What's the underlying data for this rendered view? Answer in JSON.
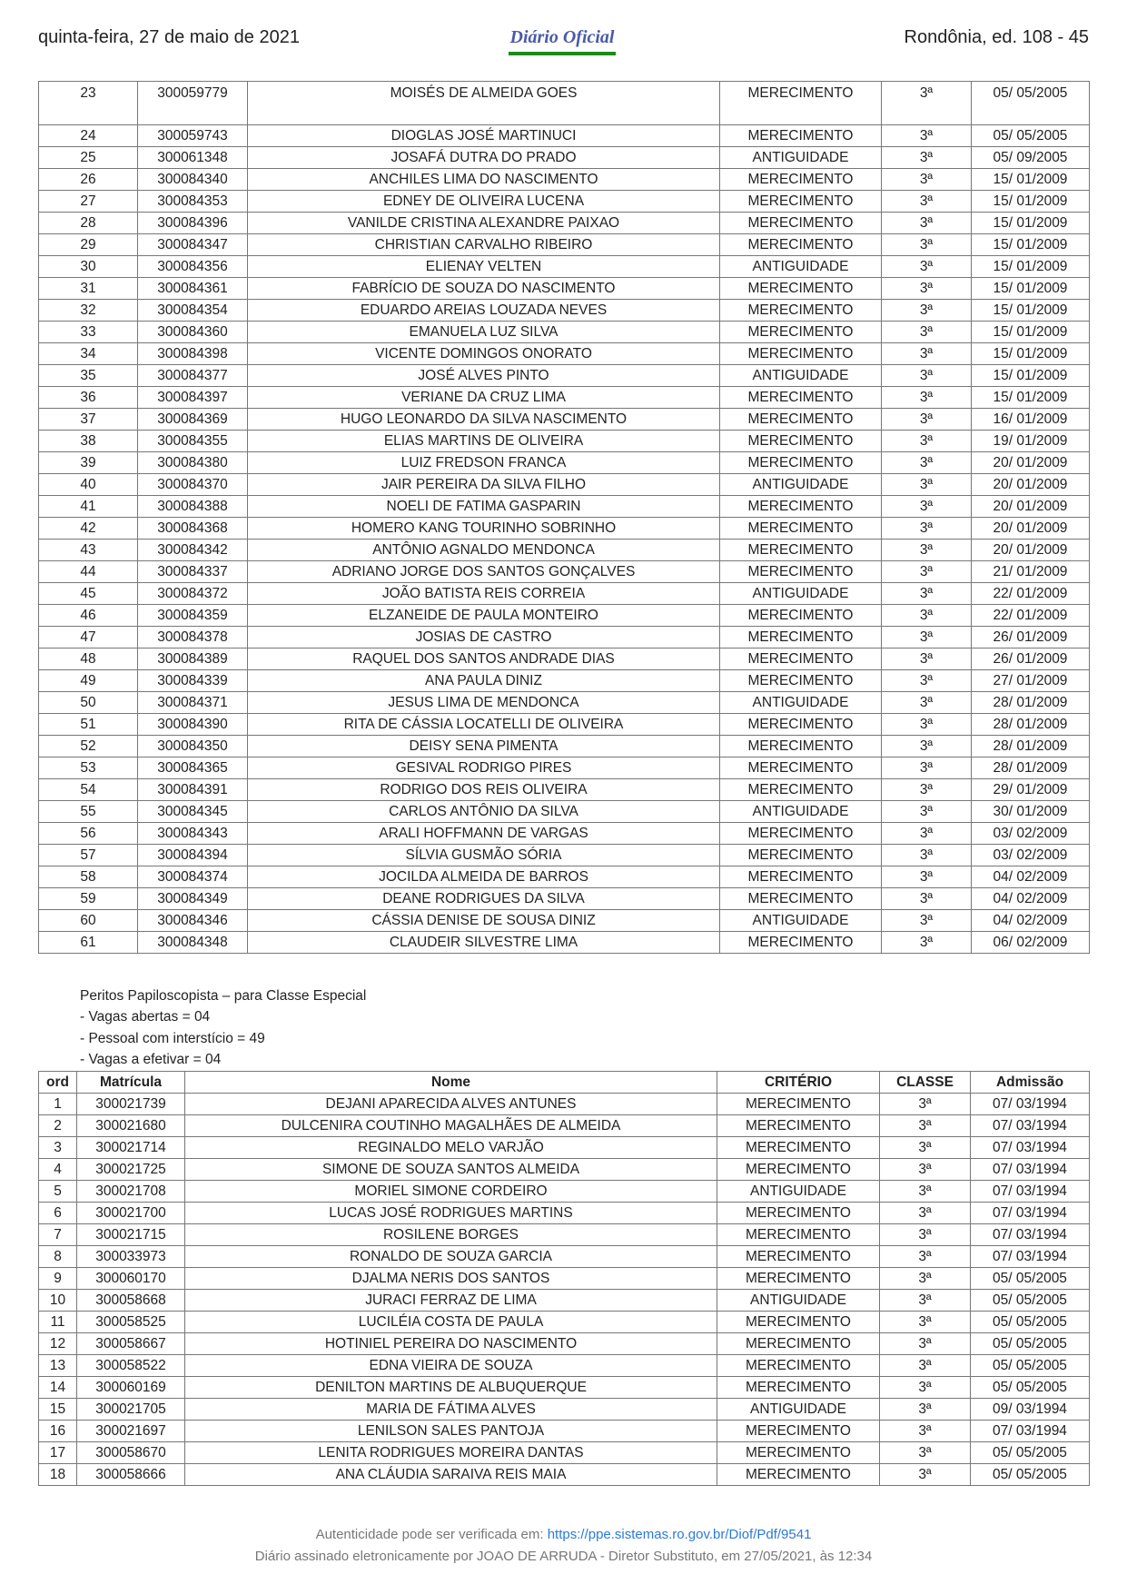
{
  "header": {
    "date": "quinta-feira, 27 de maio de 2021",
    "logo": "Diário Oficial",
    "edition": "Rondônia, ed. 108 - 45"
  },
  "table1": {
    "rows": [
      [
        "23",
        "300059779",
        "MOISÉS DE ALMEIDA GOES",
        "MERECIMENTO",
        "3ª",
        "05/ 05/2005"
      ],
      [
        "24",
        "300059743",
        "DIOGLAS JOSÉ MARTINUCI",
        "MERECIMENTO",
        "3ª",
        "05/ 05/2005"
      ],
      [
        "25",
        "300061348",
        "JOSAFÁ DUTRA DO PRADO",
        "ANTIGUIDADE",
        "3ª",
        "05/ 09/2005"
      ],
      [
        "26",
        "300084340",
        "ANCHILES LIMA DO NASCIMENTO",
        "MERECIMENTO",
        "3ª",
        "15/ 01/2009"
      ],
      [
        "27",
        "300084353",
        "EDNEY DE OLIVEIRA LUCENA",
        "MERECIMENTO",
        "3ª",
        "15/ 01/2009"
      ],
      [
        "28",
        "300084396",
        "VANILDE CRISTINA ALEXANDRE PAIXAO",
        "MERECIMENTO",
        "3ª",
        "15/ 01/2009"
      ],
      [
        "29",
        "300084347",
        "CHRISTIAN CARVALHO RIBEIRO",
        "MERECIMENTO",
        "3ª",
        "15/ 01/2009"
      ],
      [
        "30",
        "300084356",
        "ELIENAY VELTEN",
        "ANTIGUIDADE",
        "3ª",
        "15/ 01/2009"
      ],
      [
        "31",
        "300084361",
        "FABRÍCIO DE SOUZA DO NASCIMENTO",
        "MERECIMENTO",
        "3ª",
        "15/ 01/2009"
      ],
      [
        "32",
        "300084354",
        "EDUARDO AREIAS LOUZADA NEVES",
        "MERECIMENTO",
        "3ª",
        "15/ 01/2009"
      ],
      [
        "33",
        "300084360",
        "EMANUELA LUZ SILVA",
        "MERECIMENTO",
        "3ª",
        "15/ 01/2009"
      ],
      [
        "34",
        "300084398",
        "VICENTE DOMINGOS ONORATO",
        "MERECIMENTO",
        "3ª",
        "15/ 01/2009"
      ],
      [
        "35",
        "300084377",
        "JOSÉ ALVES PINTO",
        "ANTIGUIDADE",
        "3ª",
        "15/ 01/2009"
      ],
      [
        "36",
        "300084397",
        "VERIANE DA CRUZ LIMA",
        "MERECIMENTO",
        "3ª",
        "15/ 01/2009"
      ],
      [
        "37",
        "300084369",
        "HUGO LEONARDO DA SILVA NASCIMENTO",
        "MERECIMENTO",
        "3ª",
        "16/ 01/2009"
      ],
      [
        "38",
        "300084355",
        "ELIAS MARTINS DE OLIVEIRA",
        "MERECIMENTO",
        "3ª",
        "19/ 01/2009"
      ],
      [
        "39",
        "300084380",
        "LUIZ FREDSON FRANCA",
        "MERECIMENTO",
        "3ª",
        "20/ 01/2009"
      ],
      [
        "40",
        "300084370",
        "JAIR PEREIRA DA SILVA FILHO",
        "ANTIGUIDADE",
        "3ª",
        "20/ 01/2009"
      ],
      [
        "41",
        "300084388",
        "NOELI DE FATIMA GASPARIN",
        "MERECIMENTO",
        "3ª",
        "20/ 01/2009"
      ],
      [
        "42",
        "300084368",
        "HOMERO KANG TOURINHO SOBRINHO",
        "MERECIMENTO",
        "3ª",
        "20/ 01/2009"
      ],
      [
        "43",
        "300084342",
        "ANTÔNIO AGNALDO MENDONCA",
        "MERECIMENTO",
        "3ª",
        "20/ 01/2009"
      ],
      [
        "44",
        "300084337",
        "ADRIANO JORGE DOS SANTOS GONÇALVES",
        "MERECIMENTO",
        "3ª",
        "21/ 01/2009"
      ],
      [
        "45",
        "300084372",
        "JOÃO BATISTA REIS CORREIA",
        "ANTIGUIDADE",
        "3ª",
        "22/ 01/2009"
      ],
      [
        "46",
        "300084359",
        "ELZANEIDE DE PAULA MONTEIRO",
        "MERECIMENTO",
        "3ª",
        "22/ 01/2009"
      ],
      [
        "47",
        "300084378",
        "JOSIAS DE CASTRO",
        "MERECIMENTO",
        "3ª",
        "26/ 01/2009"
      ],
      [
        "48",
        "300084389",
        "RAQUEL DOS SANTOS ANDRADE DIAS",
        "MERECIMENTO",
        "3ª",
        "26/ 01/2009"
      ],
      [
        "49",
        "300084339",
        "ANA PAULA DINIZ",
        "MERECIMENTO",
        "3ª",
        "27/ 01/2009"
      ],
      [
        "50",
        "300084371",
        "JESUS LIMA DE MENDONCA",
        "ANTIGUIDADE",
        "3ª",
        "28/ 01/2009"
      ],
      [
        "51",
        "300084390",
        "RITA DE CÁSSIA LOCATELLI DE OLIVEIRA",
        "MERECIMENTO",
        "3ª",
        "28/ 01/2009"
      ],
      [
        "52",
        "300084350",
        "DEISY SENA PIMENTA",
        "MERECIMENTO",
        "3ª",
        "28/ 01/2009"
      ],
      [
        "53",
        "300084365",
        "GESIVAL RODRIGO PIRES",
        "MERECIMENTO",
        "3ª",
        "28/ 01/2009"
      ],
      [
        "54",
        "300084391",
        "RODRIGO DOS REIS OLIVEIRA",
        "MERECIMENTO",
        "3ª",
        "29/ 01/2009"
      ],
      [
        "55",
        "300084345",
        "CARLOS ANTÔNIO DA SILVA",
        "ANTIGUIDADE",
        "3ª",
        "30/ 01/2009"
      ],
      [
        "56",
        "300084343",
        "ARALI HOFFMANN DE VARGAS",
        "MERECIMENTO",
        "3ª",
        "03/ 02/2009"
      ],
      [
        "57",
        "300084394",
        "SÍLVIA GUSMÃO SÓRIA",
        "MERECIMENTO",
        "3ª",
        "03/ 02/2009"
      ],
      [
        "58",
        "300084374",
        "JOCILDA ALMEIDA DE BARROS",
        "MERECIMENTO",
        "3ª",
        "04/ 02/2009"
      ],
      [
        "59",
        "300084349",
        "DEANE RODRIGUES DA SILVA",
        "MERECIMENTO",
        "3ª",
        "04/ 02/2009"
      ],
      [
        "60",
        "300084346",
        "CÁSSIA DENISE DE SOUSA DINIZ",
        "ANTIGUIDADE",
        "3ª",
        "04/ 02/2009"
      ],
      [
        "61",
        "300084348",
        "CLAUDEIR SILVESTRE LIMA",
        "MERECIMENTO",
        "3ª",
        "06/ 02/2009"
      ]
    ]
  },
  "info": {
    "title": "Peritos Papiloscopista – para Classe Especial",
    "line1": "- Vagas abertas = 04",
    "line2": "- Pessoal com interstício = 49",
    "line3": "- Vagas a efetivar = 04"
  },
  "table2": {
    "headers": [
      "ord",
      "Matrícula",
      "Nome",
      "CRITÉRIO",
      "CLASSE",
      "Admissão"
    ],
    "rows": [
      [
        "1",
        "300021739",
        "DEJANI APARECIDA ALVES ANTUNES",
        "MERECIMENTO",
        "3ª",
        "07/ 03/1994"
      ],
      [
        "2",
        "300021680",
        "DULCENIRA COUTINHO MAGALHÃES DE ALMEIDA",
        "MERECIMENTO",
        "3ª",
        "07/ 03/1994"
      ],
      [
        "3",
        "300021714",
        "REGINALDO MELO VARJÃO",
        "MERECIMENTO",
        "3ª",
        "07/ 03/1994"
      ],
      [
        "4",
        "300021725",
        "SIMONE DE SOUZA SANTOS ALMEIDA",
        "MERECIMENTO",
        "3ª",
        "07/ 03/1994"
      ],
      [
        "5",
        "300021708",
        "MORIEL SIMONE CORDEIRO",
        "ANTIGUIDADE",
        "3ª",
        "07/ 03/1994"
      ],
      [
        "6",
        "300021700",
        "LUCAS JOSÉ RODRIGUES MARTINS",
        "MERECIMENTO",
        "3ª",
        "07/ 03/1994"
      ],
      [
        "7",
        "300021715",
        "ROSILENE BORGES",
        "MERECIMENTO",
        "3ª",
        "07/ 03/1994"
      ],
      [
        "8",
        "300033973",
        "RONALDO DE SOUZA GARCIA",
        "MERECIMENTO",
        "3ª",
        "07/ 03/1994"
      ],
      [
        "9",
        "300060170",
        "DJALMA NERIS DOS SANTOS",
        "MERECIMENTO",
        "3ª",
        "05/ 05/2005"
      ],
      [
        "10",
        "300058668",
        "JURACI FERRAZ DE LIMA",
        "ANTIGUIDADE",
        "3ª",
        "05/ 05/2005"
      ],
      [
        "11",
        "300058525",
        "LUCILÉIA COSTA DE PAULA",
        "MERECIMENTO",
        "3ª",
        "05/ 05/2005"
      ],
      [
        "12",
        "300058667",
        "HOTINIEL PEREIRA DO NASCIMENTO",
        "MERECIMENTO",
        "3ª",
        "05/ 05/2005"
      ],
      [
        "13",
        "300058522",
        "EDNA VIEIRA DE SOUZA",
        "MERECIMENTO",
        "3ª",
        "05/ 05/2005"
      ],
      [
        "14",
        "300060169",
        "DENILTON MARTINS DE ALBUQUERQUE",
        "MERECIMENTO",
        "3ª",
        "05/ 05/2005"
      ],
      [
        "15",
        "300021705",
        "MARIA DE FÁTIMA ALVES",
        "ANTIGUIDADE",
        "3ª",
        "09/ 03/1994"
      ],
      [
        "16",
        "300021697",
        "LENILSON SALES PANTOJA",
        "MERECIMENTO",
        "3ª",
        "07/ 03/1994"
      ],
      [
        "17",
        "300058670",
        "LENITA RODRIGUES MOREIRA DANTAS",
        "MERECIMENTO",
        "3ª",
        "05/ 05/2005"
      ],
      [
        "18",
        "300058666",
        "ANA CLÁUDIA SARAIVA REIS MAIA",
        "MERECIMENTO",
        "3ª",
        "05/ 05/2005"
      ]
    ]
  },
  "footer": {
    "auth_text": "Autenticidade pode ser verificada em: ",
    "auth_link": "https://ppe.sistemas.ro.gov.br/Diof/Pdf/9541",
    "signature": "Diário assinado eletronicamente por JOAO DE ARRUDA - Diretor Substituto, em 27/05/2021, às 12:34"
  }
}
